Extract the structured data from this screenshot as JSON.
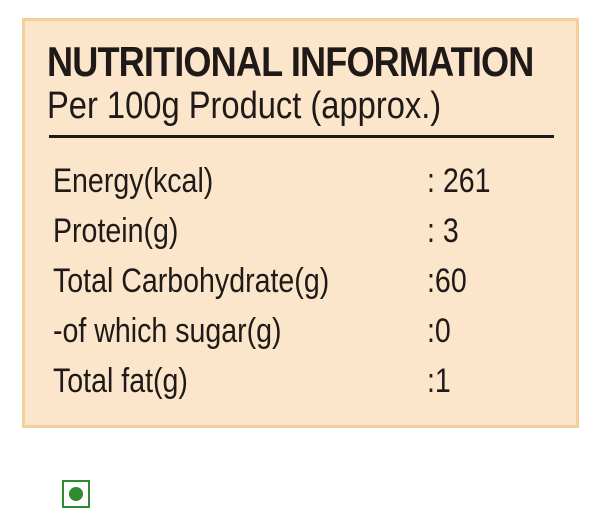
{
  "label": {
    "title": "NUTRITIONAL INFORMATION",
    "subtitle": "Per 100g Product (approx.)",
    "rows": [
      {
        "name": "Energy(kcal)",
        "value": ": 261"
      },
      {
        "name": "Protein(g)",
        "value": ": 3"
      },
      {
        "name": "Total Carbohydrate(g)",
        "value": ":60"
      },
      {
        "name": "-of which sugar(g)",
        "value": ":0"
      },
      {
        "name": "Total fat(g)",
        "value": ":1"
      }
    ]
  },
  "badge": {
    "icon": "veg-symbol-icon",
    "color": "#2e8b2e"
  },
  "colors": {
    "panel_background": "#fbe5cb",
    "panel_border": "#f5cf9a",
    "text": "#1f1a17"
  }
}
